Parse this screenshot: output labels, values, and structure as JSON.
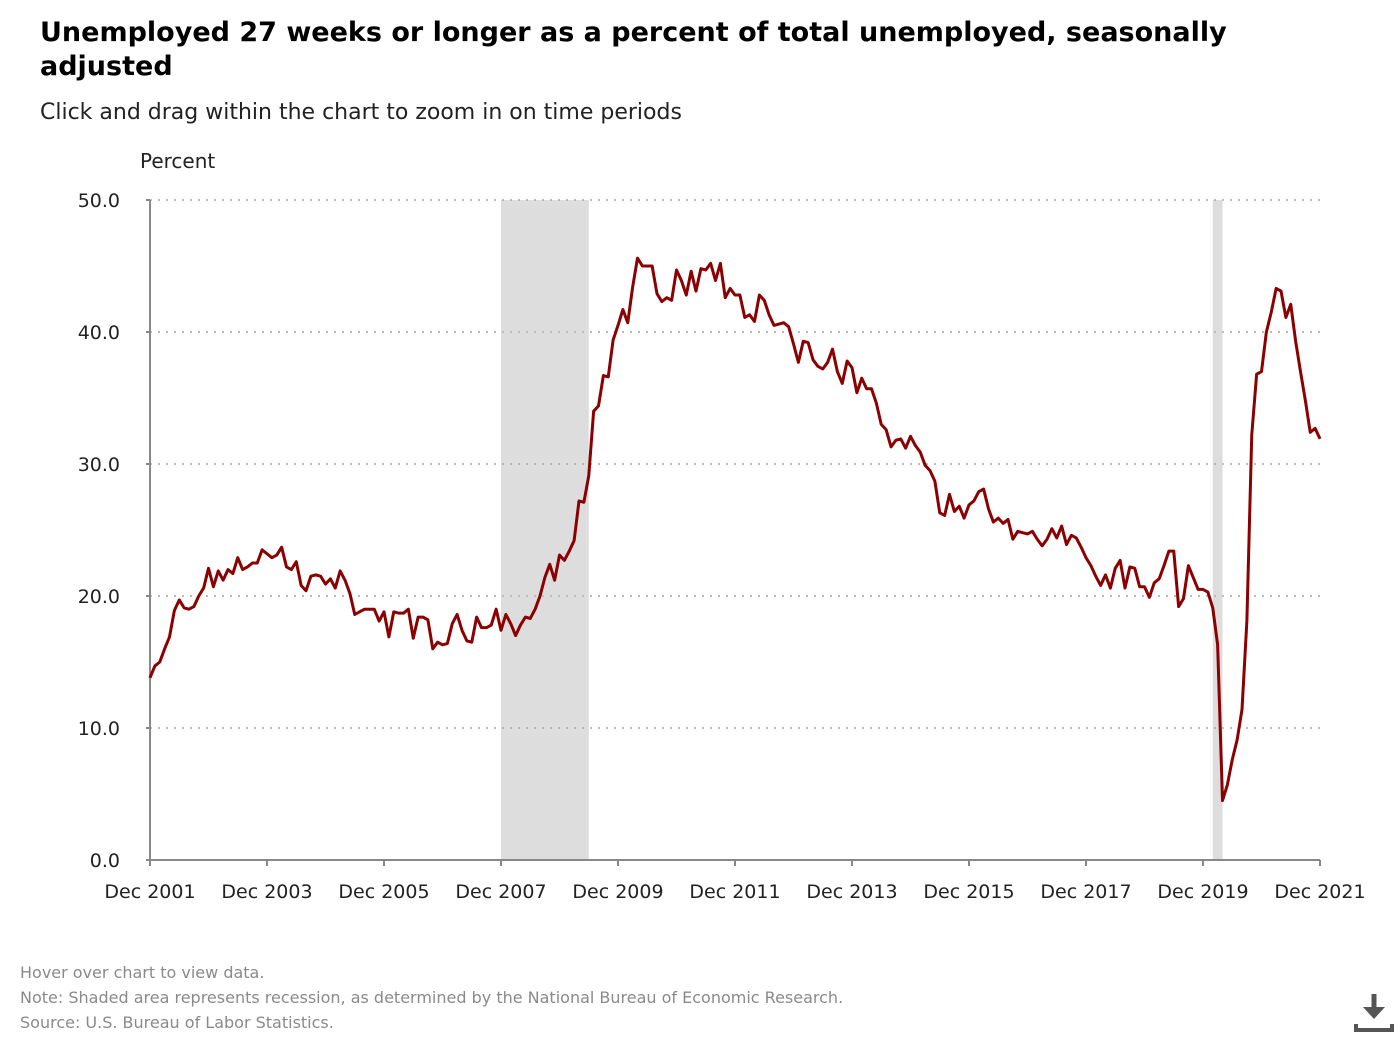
{
  "header": {
    "title": "Unemployed 27 weeks or longer as a percent of total unemployed, seasonally adjusted",
    "subtitle": "Click and drag within the chart to zoom in on time periods"
  },
  "notes": {
    "hover": "Hover over chart to view data.",
    "recession": "Note: Shaded area represents recession, as determined by the National Bureau of Economic Research.",
    "source": "Source: U.S. Bureau of Labor Statistics."
  },
  "colors": {
    "line": "#8b0000",
    "recession": "#dddddd",
    "grid": "#bbbbbb",
    "axis": "#888888"
  },
  "icons": {
    "download": "download-icon"
  },
  "chart_data": {
    "type": "line",
    "ylabel": "Percent",
    "xlabel": "",
    "ylim": [
      0,
      50
    ],
    "y_ticks": [
      "0.0",
      "10.0",
      "20.0",
      "30.0",
      "40.0",
      "50.0"
    ],
    "x_ticks": [
      "Dec 2001",
      "Dec 2003",
      "Dec 2005",
      "Dec 2007",
      "Dec 2009",
      "Dec 2011",
      "Dec 2013",
      "Dec 2015",
      "Dec 2017",
      "Dec 2019",
      "Dec 2021"
    ],
    "x_range": [
      "Dec 2001",
      "Dec 2021"
    ],
    "grid": "horizontal-dotted",
    "recessions": [
      {
        "start": "Dec 2007",
        "end": "Jun 2009"
      },
      {
        "start": "Feb 2020",
        "end": "Apr 2020"
      }
    ],
    "series": [
      {
        "start": "Dec 2001",
        "frequency": "monthly",
        "values": [
          13.8,
          14.7,
          15.0,
          16.0,
          16.9,
          18.9,
          19.7,
          19.1,
          19.0,
          19.2,
          20.0,
          20.6,
          22.1,
          20.7,
          21.9,
          21.2,
          22.0,
          21.7,
          22.9,
          22.0,
          22.2,
          22.5,
          22.5,
          23.5,
          23.2,
          22.9,
          23.1,
          23.7,
          22.2,
          22.0,
          22.6,
          20.8,
          20.4,
          21.5,
          21.6,
          21.5,
          20.9,
          21.3,
          20.6,
          21.9,
          21.2,
          20.2,
          18.6,
          18.8,
          19.0,
          19.0,
          19.0,
          18.1,
          18.8,
          16.9,
          18.8,
          18.7,
          18.7,
          19.0,
          16.8,
          18.4,
          18.4,
          18.2,
          16.0,
          16.5,
          16.3,
          16.4,
          17.9,
          18.6,
          17.4,
          16.6,
          16.5,
          18.4,
          17.6,
          17.6,
          17.8,
          19.0,
          17.4,
          18.6,
          17.9,
          17.0,
          17.8,
          18.4,
          18.3,
          19.0,
          20.0,
          21.4,
          22.4,
          21.2,
          23.1,
          22.7,
          23.4,
          24.2,
          27.2,
          27.1,
          29.1,
          34.0,
          34.4,
          36.7,
          36.6,
          39.4,
          40.5,
          41.7,
          40.7,
          43.4,
          45.6,
          45.0,
          45.0,
          45.0,
          42.9,
          42.3,
          42.6,
          42.4,
          44.7,
          43.9,
          42.8,
          44.6,
          43.1,
          44.8,
          44.7,
          45.2,
          43.9,
          45.2,
          42.6,
          43.3,
          42.8,
          42.8,
          41.1,
          41.3,
          40.8,
          42.8,
          42.4,
          41.3,
          40.5,
          40.6,
          40.7,
          40.4,
          39.1,
          37.7,
          39.3,
          39.2,
          37.9,
          37.4,
          37.2,
          37.7,
          38.7,
          37.0,
          36.1,
          37.8,
          37.3,
          35.4,
          36.5,
          35.7,
          35.7,
          34.6,
          33.0,
          32.6,
          31.3,
          31.8,
          31.9,
          31.2,
          32.1,
          31.4,
          30.9,
          29.9,
          29.5,
          28.7,
          26.3,
          26.1,
          27.7,
          26.4,
          26.8,
          25.9,
          26.9,
          27.2,
          27.9,
          28.1,
          26.6,
          25.6,
          25.9,
          25.5,
          25.8,
          24.3,
          24.9,
          24.8,
          24.7,
          24.9,
          24.3,
          23.8,
          24.3,
          25.1,
          24.4,
          25.3,
          23.9,
          24.6,
          24.4,
          23.7,
          22.9,
          22.3,
          21.5,
          20.8,
          21.6,
          20.6,
          22.1,
          22.7,
          20.6,
          22.2,
          22.1,
          20.7,
          20.7,
          19.9,
          21.0,
          21.3,
          22.3,
          23.4,
          23.4,
          19.2,
          19.8,
          22.3,
          21.4,
          20.5,
          20.5,
          20.3,
          19.1,
          16.3,
          4.5,
          5.7,
          7.6,
          9.1,
          11.4,
          18.1,
          32.2,
          36.8,
          37.0,
          40.0,
          41.5,
          43.3,
          43.1,
          41.1,
          42.1,
          39.3,
          37.0,
          34.8,
          32.4,
          32.7,
          31.9
        ]
      }
    ]
  }
}
